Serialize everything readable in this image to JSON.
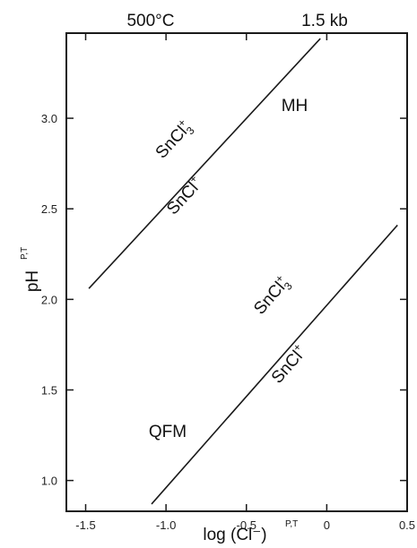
{
  "header": {
    "temperature": "500°C",
    "pressure": "1.5 kb"
  },
  "chart_data": {
    "type": "line",
    "title": "",
    "xlabel": "log (Cl⁻)",
    "xlabel_superscript": "P,T",
    "ylabel": "pH",
    "ylabel_superscript": "P,T",
    "xlim": [
      -1.62,
      0.5
    ],
    "ylim": [
      0.83,
      3.47
    ],
    "x_ticks": [
      {
        "value": -1.5,
        "label": "-1.5"
      },
      {
        "value": -1.0,
        "label": "-1.0"
      },
      {
        "value": -0.5,
        "label": "-0.5"
      },
      {
        "value": 0,
        "label": "0"
      },
      {
        "value": 0.5,
        "label": "0.5"
      }
    ],
    "y_ticks": [
      {
        "value": 1.0,
        "label": "1.0"
      },
      {
        "value": 1.5,
        "label": "1.5"
      },
      {
        "value": 2.0,
        "label": "2.0"
      },
      {
        "value": 2.5,
        "label": "2.5"
      },
      {
        "value": 3.0,
        "label": "3.0"
      }
    ],
    "series": [
      {
        "name": "MH",
        "x": [
          -1.48,
          -0.04
        ],
        "y": [
          2.06,
          3.44
        ]
      },
      {
        "name": "QFM",
        "x": [
          -1.09,
          0.44
        ],
        "y": [
          0.87,
          2.41
        ]
      }
    ],
    "annotations": [
      {
        "text": "MH",
        "x": -0.2,
        "y": 3.04
      },
      {
        "text": "QFM",
        "x": -0.99,
        "y": 1.24
      },
      {
        "text": "SnCl",
        "sup": "+",
        "sub": "3",
        "x": -0.93,
        "y": 2.86
      },
      {
        "text": "SnCl",
        "sup": "+",
        "sub": "",
        "x": -0.86,
        "y": 2.55
      },
      {
        "text": "SnCl",
        "sup": "+",
        "sub": "3",
        "x": -0.32,
        "y": 2.0
      },
      {
        "text": "SnCl",
        "sup": "+",
        "sub": "",
        "x": -0.21,
        "y": 1.62
      }
    ],
    "grid": false,
    "line_color": "#1a1a1a"
  }
}
